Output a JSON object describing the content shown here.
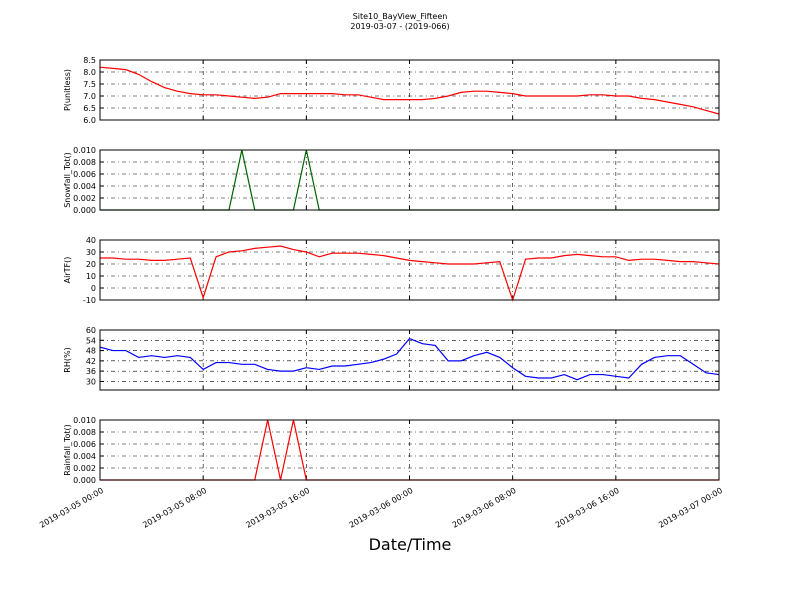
{
  "chart_data": {
    "type": "line",
    "title": "Site10_BayView_Fifteen",
    "subtitle": "2019-03-07 - (2019-066)",
    "xlabel": "Date/Time",
    "x": [
      "2019-03-05 00:00",
      "2019-03-05 01:00",
      "2019-03-05 02:00",
      "2019-03-05 03:00",
      "2019-03-05 04:00",
      "2019-03-05 05:00",
      "2019-03-05 06:00",
      "2019-03-05 07:00",
      "2019-03-05 08:00",
      "2019-03-05 09:00",
      "2019-03-05 10:00",
      "2019-03-05 11:00",
      "2019-03-05 12:00",
      "2019-03-05 13:00",
      "2019-03-05 14:00",
      "2019-03-05 15:00",
      "2019-03-05 16:00",
      "2019-03-05 17:00",
      "2019-03-05 18:00",
      "2019-03-05 19:00",
      "2019-03-05 20:00",
      "2019-03-05 21:00",
      "2019-03-05 22:00",
      "2019-03-05 23:00",
      "2019-03-06 00:00",
      "2019-03-06 01:00",
      "2019-03-06 02:00",
      "2019-03-06 03:00",
      "2019-03-06 04:00",
      "2019-03-06 05:00",
      "2019-03-06 06:00",
      "2019-03-06 07:00",
      "2019-03-06 08:00",
      "2019-03-06 09:00",
      "2019-03-06 10:00",
      "2019-03-06 11:00",
      "2019-03-06 12:00",
      "2019-03-06 13:00",
      "2019-03-06 14:00",
      "2019-03-06 15:00",
      "2019-03-06 16:00",
      "2019-03-06 17:00",
      "2019-03-06 18:00",
      "2019-03-06 19:00",
      "2019-03-06 20:00",
      "2019-03-06 21:00",
      "2019-03-06 22:00",
      "2019-03-06 23:00",
      "2019-03-07 00:00"
    ],
    "xlim": [
      "2019-03-05 00:00",
      "2019-03-07 00:00"
    ],
    "xticks": [
      "2019-03-05 00:00",
      "2019-03-05 08:00",
      "2019-03-05 16:00",
      "2019-03-06 00:00",
      "2019-03-06 08:00",
      "2019-03-06 16:00",
      "2019-03-07 00:00"
    ],
    "grid": true,
    "series": [
      {
        "name": "P(unitless)",
        "color": "#ff0000",
        "ylim": [
          6,
          8.5
        ],
        "yticks": [
          {
            "value": 6,
            "label": "6.0"
          },
          6.5,
          {
            "value": 7,
            "label": "7.0"
          },
          7.5,
          {
            "value": 8,
            "label": "8.0"
          },
          8.5
        ],
        "values": [
          8.2,
          8.15,
          8.1,
          7.9,
          7.6,
          7.35,
          7.2,
          7.1,
          7.05,
          7.05,
          7.0,
          6.95,
          6.9,
          6.95,
          7.1,
          7.1,
          7.1,
          7.1,
          7.1,
          7.05,
          7.05,
          6.95,
          6.85,
          6.85,
          6.85,
          6.85,
          6.9,
          7.0,
          7.15,
          7.2,
          7.2,
          7.15,
          7.1,
          7.0,
          7.0,
          7.0,
          7.0,
          7.0,
          7.05,
          7.05,
          7.0,
          7.0,
          6.9,
          6.85,
          6.75,
          6.65,
          6.55,
          6.4,
          6.25
        ]
      },
      {
        "name": "Snowfall_Tot()",
        "color": "#006400",
        "ylim": [
          0,
          0.01
        ],
        "yticks": [
          {
            "value": 0,
            "label": "0.000"
          },
          {
            "value": 0.002,
            "label": "0.002"
          },
          {
            "value": 0.004,
            "label": "0.004"
          },
          {
            "value": 0.006,
            "label": "0.006"
          },
          {
            "value": 0.008,
            "label": "0.008"
          },
          {
            "value": 0.01,
            "label": "0.010"
          }
        ],
        "values": [
          0,
          0,
          0,
          0,
          0,
          0,
          0,
          0,
          0,
          0,
          0,
          0.01,
          0,
          0,
          0,
          0,
          0.01,
          0,
          0,
          0,
          0,
          0,
          0,
          0,
          0,
          0,
          0,
          0,
          0,
          0,
          0,
          0,
          0,
          0,
          0,
          0,
          0,
          0,
          0,
          0,
          0,
          0,
          0,
          0,
          0,
          0,
          0,
          0,
          0
        ]
      },
      {
        "name": "AirTF()",
        "color": "#ff0000",
        "ylim": [
          -10,
          40
        ],
        "yticks": [
          -10,
          0,
          10,
          20,
          30,
          40
        ],
        "values": [
          25,
          25,
          24,
          24,
          23,
          23,
          24,
          25,
          -8,
          26,
          30,
          31,
          33,
          34,
          35,
          32,
          30,
          26,
          29,
          29,
          29,
          28,
          27,
          25,
          23,
          22,
          21,
          20,
          20,
          20,
          21,
          22,
          -10,
          24,
          25,
          25,
          27,
          28,
          27,
          26,
          26,
          23,
          24,
          24,
          23,
          22,
          22,
          21,
          20
        ]
      },
      {
        "name": "RH(%)",
        "color": "#0000ff",
        "ylim": [
          25,
          60
        ],
        "yticks": [
          30,
          36,
          42,
          48,
          54,
          60
        ],
        "values": [
          50,
          48,
          48,
          44,
          45,
          44,
          45,
          44,
          37,
          41,
          41,
          40,
          40,
          37,
          36,
          36,
          38,
          37,
          39,
          39,
          40,
          41,
          43,
          46,
          55,
          52,
          51,
          42,
          42,
          45,
          47,
          44,
          38,
          33,
          32,
          32,
          34,
          31,
          34,
          34,
          33,
          32,
          40,
          44,
          45,
          45,
          40,
          35,
          34
        ]
      },
      {
        "name": "Rainfall_Tot()",
        "color": "#ff0000",
        "ylim": [
          0,
          0.01
        ],
        "yticks": [
          {
            "value": 0,
            "label": "0.000"
          },
          {
            "value": 0.002,
            "label": "0.002"
          },
          {
            "value": 0.004,
            "label": "0.004"
          },
          {
            "value": 0.006,
            "label": "0.006"
          },
          {
            "value": 0.008,
            "label": "0.008"
          },
          {
            "value": 0.01,
            "label": "0.010"
          }
        ],
        "values": [
          0,
          0,
          0,
          0,
          0,
          0,
          0,
          0,
          0,
          0,
          0,
          0,
          0,
          0.01,
          0,
          0.01,
          0,
          0,
          0,
          0,
          0,
          0,
          0,
          0,
          0,
          0,
          0,
          0,
          0,
          0,
          0,
          0,
          0,
          0,
          0,
          0,
          0,
          0,
          0,
          0,
          0,
          0,
          0,
          0,
          0,
          0,
          0,
          0,
          0
        ]
      }
    ]
  }
}
